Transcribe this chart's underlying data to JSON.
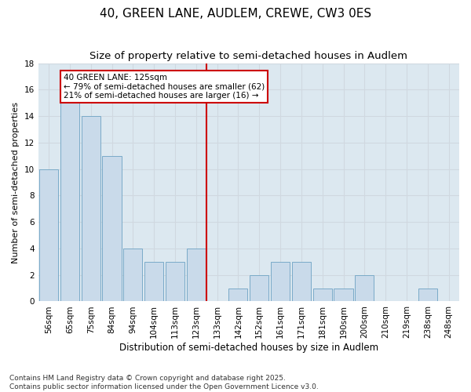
{
  "title": "40, GREEN LANE, AUDLEM, CREWE, CW3 0ES",
  "subtitle": "Size of property relative to semi-detached houses in Audlem",
  "xlabel": "Distribution of semi-detached houses by size in Audlem",
  "ylabel": "Number of semi-detached properties",
  "categories": [
    "56sqm",
    "65sqm",
    "75sqm",
    "84sqm",
    "94sqm",
    "104sqm",
    "113sqm",
    "123sqm",
    "133sqm",
    "142sqm",
    "152sqm",
    "161sqm",
    "171sqm",
    "181sqm",
    "190sqm",
    "200sqm",
    "210sqm",
    "219sqm",
    "238sqm",
    "248sqm"
  ],
  "values": [
    10,
    15,
    14,
    11,
    4,
    3,
    3,
    4,
    0,
    1,
    2,
    3,
    3,
    1,
    1,
    2,
    0,
    0,
    1,
    0
  ],
  "bar_color": "#c9daea",
  "bar_edge_color": "#7aaac8",
  "grid_color": "#d0d8e0",
  "vline_x_index": 7,
  "vline_color": "#cc0000",
  "annotation_text": "40 GREEN LANE: 125sqm\n← 79% of semi-detached houses are smaller (62)\n21% of semi-detached houses are larger (16) →",
  "annotation_box_color": "#cc0000",
  "annotation_bg": "#ffffff",
  "ylim": [
    0,
    18
  ],
  "yticks": [
    0,
    2,
    4,
    6,
    8,
    10,
    12,
    14,
    16,
    18
  ],
  "footnote": "Contains HM Land Registry data © Crown copyright and database right 2025.\nContains public sector information licensed under the Open Government Licence v3.0.",
  "background_color": "#ffffff",
  "plot_bg_color": "#dce8f0",
  "title_fontsize": 11,
  "subtitle_fontsize": 9.5,
  "xlabel_fontsize": 8.5,
  "ylabel_fontsize": 8,
  "tick_fontsize": 7.5,
  "annotation_fontsize": 7.5,
  "footnote_fontsize": 6.5
}
